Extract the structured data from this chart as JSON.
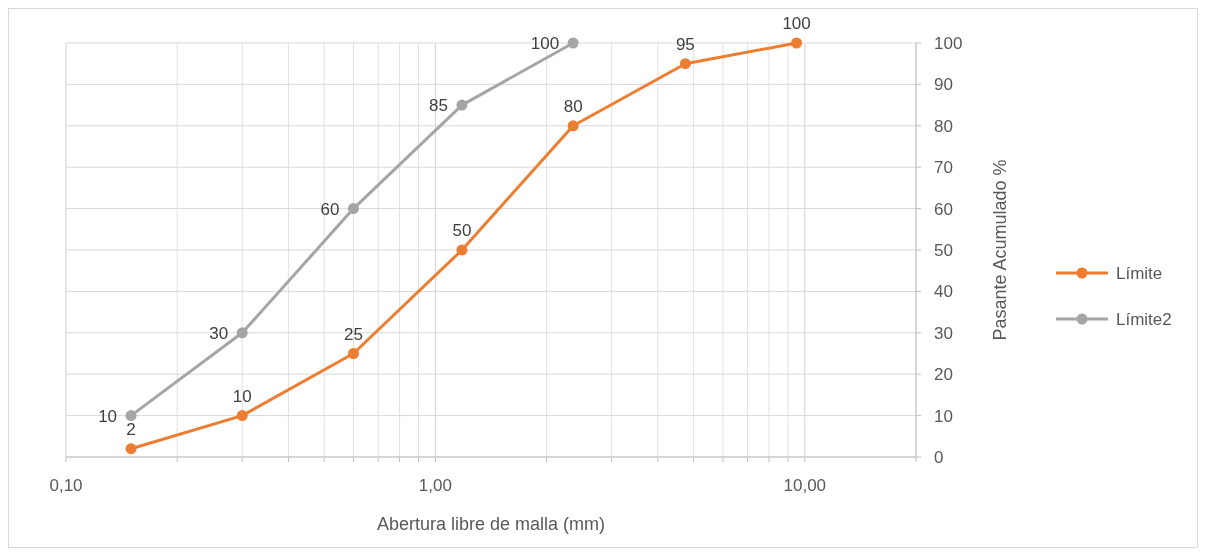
{
  "chart_data": {
    "type": "line",
    "xlabel": "Abertura libre de malla (mm)",
    "ylabel": "Pasante Acumulado %",
    "log": "x",
    "xlim": [
      0.1,
      20
    ],
    "ylim": [
      0,
      100
    ],
    "xticks": [
      {
        "value": 0.1,
        "label": "0,10"
      },
      {
        "value": 0.2,
        "label": null
      },
      {
        "value": 0.3,
        "label": null
      },
      {
        "value": 0.4,
        "label": null
      },
      {
        "value": 0.5,
        "label": null
      },
      {
        "value": 0.6,
        "label": null
      },
      {
        "value": 0.7,
        "label": null
      },
      {
        "value": 0.8,
        "label": null
      },
      {
        "value": 0.9,
        "label": null
      },
      {
        "value": 1,
        "label": "1,00"
      },
      {
        "value": 2,
        "label": null
      },
      {
        "value": 3,
        "label": null
      },
      {
        "value": 4,
        "label": null
      },
      {
        "value": 5,
        "label": null
      },
      {
        "value": 6,
        "label": null
      },
      {
        "value": 7,
        "label": null
      },
      {
        "value": 8,
        "label": null
      },
      {
        "value": 9,
        "label": null
      },
      {
        "value": 10,
        "label": "10,00"
      },
      {
        "value": 20,
        "label": null
      }
    ],
    "yticks": [
      0,
      10,
      20,
      30,
      40,
      50,
      60,
      70,
      80,
      90,
      100
    ],
    "grid": true,
    "legend": "right",
    "marker": "circle",
    "data_labels": true,
    "series": [
      {
        "name": "Límite",
        "color": "#ed7d31",
        "x": [
          0.15,
          0.3,
          0.6,
          1.18,
          2.36,
          4.75,
          9.5
        ],
        "values": [
          2,
          10,
          25,
          50,
          80,
          95,
          100
        ]
      },
      {
        "name": "Límite2",
        "color": "#a5a5a5",
        "x": [
          0.15,
          0.3,
          0.6,
          1.18,
          2.36
        ],
        "values": [
          10,
          30,
          60,
          85,
          100
        ]
      }
    ]
  }
}
